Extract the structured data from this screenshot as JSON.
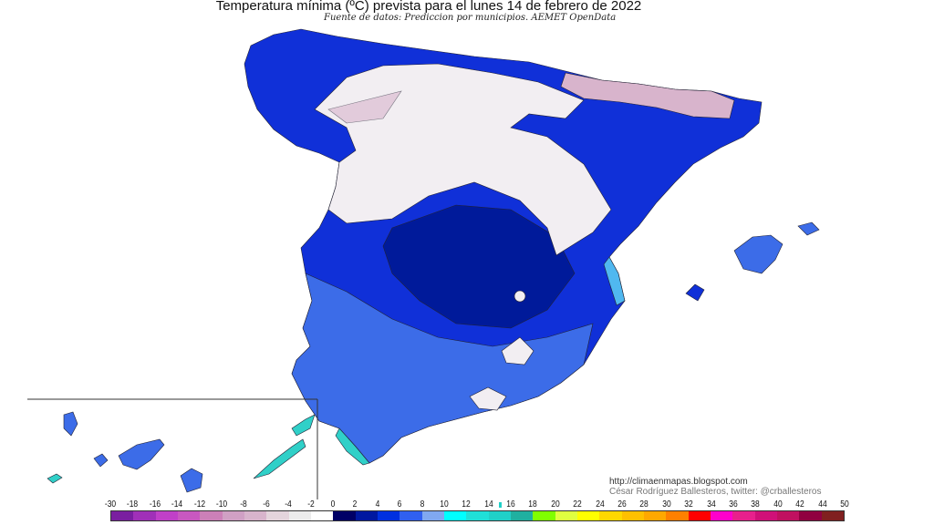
{
  "title": "Temperatura mínima (ºC) prevista para el lunes 14 de febrero de 2022",
  "subtitle": "Fuente de datos: Prediccion por municipios. AEMET OpenData",
  "credits": {
    "url": "http://climaenmapas.blogspot.com",
    "author": "César Rodríguez Ballesteros, twitter: @crballesteros"
  },
  "legend": {
    "labels": [
      "-30",
      "-18",
      "-16",
      "-14",
      "-12",
      "-10",
      "-8",
      "-6",
      "-4",
      "-2",
      "0",
      "2",
      "4",
      "6",
      "8",
      "10",
      "12",
      "14",
      "16",
      "18",
      "20",
      "22",
      "24",
      "26",
      "28",
      "30",
      "32",
      "34",
      "36",
      "38",
      "40",
      "42",
      "44",
      "50"
    ],
    "colors": [
      "#7a1fa0",
      "#a030b8",
      "#c040c8",
      "#c858c0",
      "#cc80b8",
      "#d0a0c4",
      "#d8b4cc",
      "#e4d4dc",
      "#ececec",
      "#ffffff",
      "#000066",
      "#0018a0",
      "#0030e0",
      "#3060f0",
      "#80a8f0",
      "#00ffff",
      "#20e0d8",
      "#20d0c8",
      "#20b0a0",
      "#80ff00",
      "#e0ff40",
      "#ffff00",
      "#ffd800",
      "#ffc000",
      "#ffa800",
      "#ff8000",
      "#ff0000",
      "#ff00cc",
      "#e8208c",
      "#d01078",
      "#c01060",
      "#900040",
      "#802020"
    ]
  },
  "map_colors": {
    "cold_north": "#f2eef2",
    "frost": "#d8b4cc",
    "mid": "#1030d8",
    "core": "#001a9a",
    "south": "#3c6ce8",
    "coast": "#50b8f0",
    "canary": "#30d0c8"
  }
}
